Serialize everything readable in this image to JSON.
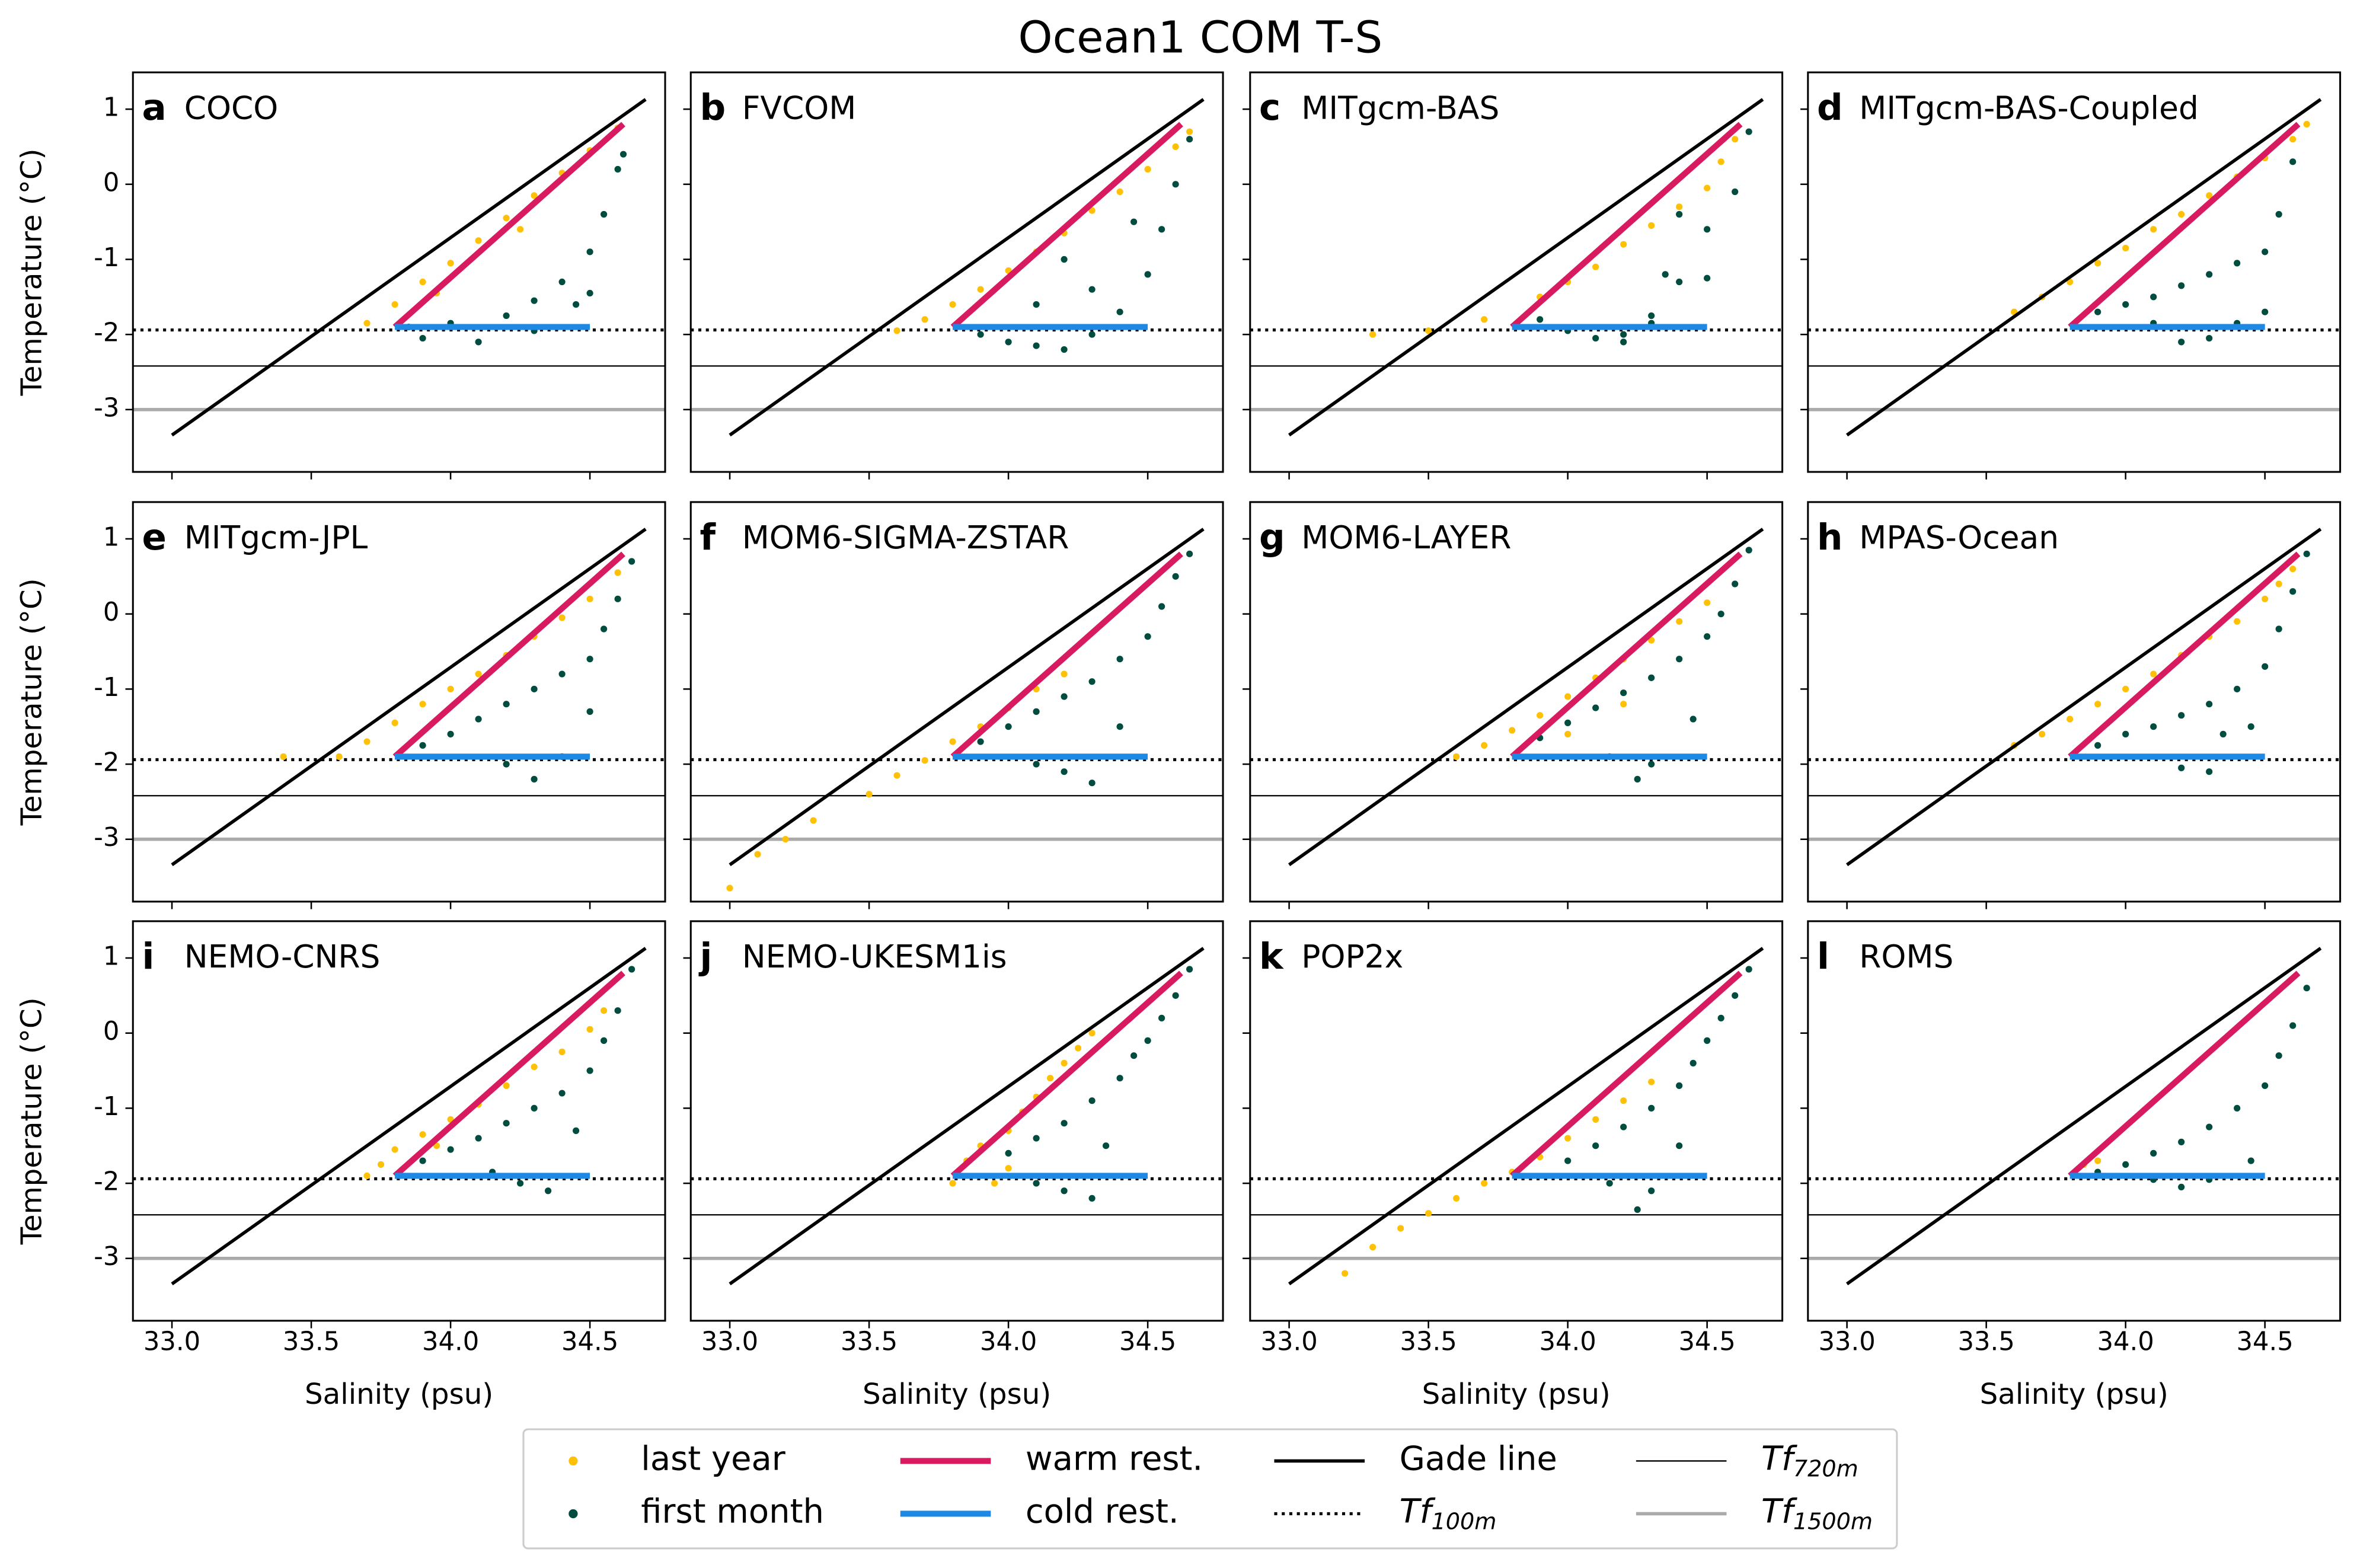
{
  "chart_data": {
    "type": "scatter",
    "title": "Ocean1 COM T-S",
    "x_label": "Salinity (psu)",
    "y_label": "Temperature (°C)",
    "xlim": [
      32.86,
      34.77
    ],
    "ylim": [
      -3.83,
      1.49
    ],
    "xticks": [
      {
        "value": 33,
        "label": "33.0"
      },
      {
        "value": 33.5,
        "label": "33.5"
      },
      {
        "value": 34,
        "label": "34.0"
      },
      {
        "value": 34.5,
        "label": "34.5"
      }
    ],
    "yticks": [
      1,
      0,
      -1,
      -2,
      -3
    ],
    "scatter_series": [
      {
        "name": "last year",
        "color": "#ffc107"
      },
      {
        "name": "first month",
        "color": "#004d40"
      }
    ],
    "lines": [
      {
        "name": "warm rest.",
        "color": "#d81b60",
        "style": "thick",
        "x": [
          33.8,
          34.62
        ],
        "y": [
          -1.9,
          0.8
        ]
      },
      {
        "name": "cold rest.",
        "color": "#1e88e5",
        "style": "thick",
        "x": [
          33.8,
          34.5
        ],
        "y": [
          -1.9,
          -1.9
        ]
      },
      {
        "name": "Gade line",
        "color": "#000000",
        "style": "medium",
        "x": [
          33.0,
          34.7
        ],
        "y": [
          -3.34,
          1.13
        ]
      }
    ],
    "hlines": [
      {
        "name": "Tf",
        "subscript": "100m",
        "value": -1.94,
        "style": "dotted",
        "color": "#000000"
      },
      {
        "name": "Tf",
        "subscript": "720m",
        "value": -2.42,
        "style": "thin",
        "color": "#000000"
      },
      {
        "name": "Tf",
        "subscript": "1500m",
        "value": -3.0,
        "style": "medium",
        "color": "#aaaaaa"
      }
    ],
    "panels": [
      {
        "label": "a",
        "title": "COCO",
        "series": [
          {
            "x": [
              33.7,
              33.8,
              33.9,
              34.0,
              34.1,
              34.2,
              34.3,
              34.4,
              34.5,
              34.6,
              33.95,
              34.25
            ],
            "y": [
              -1.85,
              -1.6,
              -1.3,
              -1.05,
              -0.75,
              -0.45,
              -0.15,
              0.15,
              0.45,
              0.75,
              -1.45,
              -0.6
            ]
          },
          {
            "x": [
              33.85,
              34.0,
              34.2,
              34.3,
              34.4,
              34.5,
              34.55,
              34.6,
              34.62,
              34.1,
              33.9,
              34.3,
              34.45,
              34.5
            ],
            "y": [
              -1.9,
              -1.85,
              -1.75,
              -1.55,
              -1.3,
              -0.9,
              -0.4,
              0.2,
              0.4,
              -2.1,
              -2.05,
              -1.95,
              -1.6,
              -1.45
            ]
          }
        ]
      },
      {
        "label": "b",
        "title": "FVCOM",
        "series": [
          {
            "x": [
              33.6,
              33.7,
              33.8,
              33.9,
              34.0,
              34.1,
              34.2,
              34.3,
              34.4,
              34.5,
              34.6,
              34.65
            ],
            "y": [
              -1.95,
              -1.8,
              -1.6,
              -1.4,
              -1.15,
              -0.9,
              -0.65,
              -0.35,
              -0.1,
              0.2,
              0.5,
              0.7
            ]
          },
          {
            "x": [
              33.9,
              34.0,
              34.1,
              34.2,
              34.3,
              34.4,
              34.5,
              34.55,
              34.6,
              34.65,
              34.3,
              34.45,
              34.2,
              34.1
            ],
            "y": [
              -2.0,
              -2.1,
              -2.15,
              -2.2,
              -2.0,
              -1.7,
              -1.2,
              -0.6,
              0.0,
              0.6,
              -1.4,
              -0.5,
              -1.0,
              -1.6
            ]
          }
        ]
      },
      {
        "label": "c",
        "title": "MITgcm-BAS",
        "series": [
          {
            "x": [
              33.3,
              33.5,
              33.7,
              33.9,
              34.0,
              34.1,
              34.2,
              34.3,
              34.4,
              34.5,
              34.55,
              34.6
            ],
            "y": [
              -2.0,
              -1.95,
              -1.8,
              -1.5,
              -1.3,
              -1.1,
              -0.8,
              -0.55,
              -0.3,
              -0.05,
              0.3,
              0.6
            ]
          },
          {
            "x": [
              33.9,
              34.0,
              34.1,
              34.2,
              34.3,
              34.4,
              34.5,
              34.4,
              34.35,
              34.5,
              34.6,
              34.65,
              34.3,
              34.2
            ],
            "y": [
              -1.8,
              -1.95,
              -2.05,
              -2.0,
              -1.75,
              -1.3,
              -1.25,
              -0.4,
              -1.2,
              -0.6,
              -0.1,
              0.7,
              -1.85,
              -2.1
            ]
          }
        ]
      },
      {
        "label": "d",
        "title": "MITgcm-BAS-Coupled",
        "series": [
          {
            "x": [
              33.6,
              33.7,
              33.8,
              33.9,
              34.0,
              34.1,
              34.2,
              34.3,
              34.4,
              34.5,
              34.6,
              34.65
            ],
            "y": [
              -1.7,
              -1.5,
              -1.3,
              -1.05,
              -0.85,
              -0.6,
              -0.4,
              -0.15,
              0.1,
              0.35,
              0.6,
              0.8
            ]
          },
          {
            "x": [
              33.9,
              34.0,
              34.1,
              34.2,
              34.3,
              34.4,
              34.5,
              34.55,
              34.6,
              34.5,
              34.4,
              34.3,
              34.2,
              34.1
            ],
            "y": [
              -1.7,
              -1.6,
              -1.5,
              -1.35,
              -1.2,
              -1.05,
              -0.9,
              -0.4,
              0.3,
              -1.7,
              -1.85,
              -2.05,
              -2.1,
              -1.85
            ]
          }
        ]
      },
      {
        "label": "e",
        "title": "MITgcm-JPL",
        "series": [
          {
            "x": [
              33.4,
              33.6,
              33.7,
              33.8,
              33.9,
              34.0,
              34.1,
              34.2,
              34.3,
              34.4,
              34.5,
              34.6
            ],
            "y": [
              -1.9,
              -1.9,
              -1.7,
              -1.45,
              -1.2,
              -1.0,
              -0.8,
              -0.55,
              -0.3,
              -0.05,
              0.2,
              0.55
            ]
          },
          {
            "x": [
              33.9,
              34.0,
              34.1,
              34.2,
              34.3,
              34.4,
              34.5,
              34.55,
              34.6,
              34.65,
              34.3,
              34.4,
              34.2,
              34.5
            ],
            "y": [
              -1.75,
              -1.6,
              -1.4,
              -1.2,
              -1.0,
              -0.8,
              -0.6,
              -0.2,
              0.2,
              0.7,
              -2.2,
              -1.9,
              -2.0,
              -1.3
            ]
          }
        ]
      },
      {
        "label": "f",
        "title": "MOM6-SIGMA-ZSTAR",
        "series": [
          {
            "x": [
              33.0,
              33.1,
              33.2,
              33.3,
              33.5,
              33.6,
              33.7,
              33.8,
              33.9,
              34.0,
              34.1,
              34.2
            ],
            "y": [
              -3.65,
              -3.2,
              -3.0,
              -2.75,
              -2.4,
              -2.15,
              -1.95,
              -1.7,
              -1.5,
              -1.25,
              -1.0,
              -0.8
            ]
          },
          {
            "x": [
              33.9,
              34.0,
              34.1,
              34.2,
              34.3,
              34.4,
              34.5,
              34.55,
              34.6,
              34.65,
              34.3,
              34.2,
              34.4,
              34.1
            ],
            "y": [
              -1.7,
              -1.5,
              -1.3,
              -1.1,
              -0.9,
              -0.6,
              -0.3,
              0.1,
              0.5,
              0.8,
              -2.25,
              -2.1,
              -1.5,
              -2.0
            ]
          }
        ]
      },
      {
        "label": "g",
        "title": "MOM6-LAYER",
        "series": [
          {
            "x": [
              33.6,
              33.7,
              33.8,
              33.9,
              34.0,
              34.1,
              34.2,
              34.3,
              34.4,
              34.5,
              34.0,
              34.2
            ],
            "y": [
              -1.9,
              -1.75,
              -1.55,
              -1.35,
              -1.1,
              -0.85,
              -0.6,
              -0.35,
              -0.1,
              0.15,
              -1.6,
              -1.2
            ]
          },
          {
            "x": [
              33.9,
              34.0,
              34.1,
              34.2,
              34.3,
              34.4,
              34.5,
              34.55,
              34.6,
              34.65,
              34.25,
              34.3,
              34.45,
              34.15
            ],
            "y": [
              -1.65,
              -1.45,
              -1.25,
              -1.05,
              -0.85,
              -0.6,
              -0.3,
              0.0,
              0.4,
              0.85,
              -2.2,
              -2.0,
              -1.4,
              -1.9
            ]
          }
        ]
      },
      {
        "label": "h",
        "title": "MPAS-Ocean",
        "series": [
          {
            "x": [
              33.6,
              33.7,
              33.8,
              33.9,
              34.0,
              34.1,
              34.2,
              34.3,
              34.4,
              34.5,
              34.55,
              34.6
            ],
            "y": [
              -1.75,
              -1.6,
              -1.4,
              -1.2,
              -1.0,
              -0.8,
              -0.55,
              -0.3,
              -0.1,
              0.2,
              0.4,
              0.6
            ]
          },
          {
            "x": [
              33.9,
              34.0,
              34.1,
              34.2,
              34.3,
              34.4,
              34.5,
              34.55,
              34.6,
              34.65,
              34.3,
              34.2,
              34.45,
              34.35
            ],
            "y": [
              -1.75,
              -1.6,
              -1.5,
              -1.35,
              -1.2,
              -1.0,
              -0.7,
              -0.2,
              0.3,
              0.8,
              -2.1,
              -2.05,
              -1.5,
              -1.6
            ]
          }
        ]
      },
      {
        "label": "i",
        "title": "NEMO-CNRS",
        "series": [
          {
            "x": [
              33.7,
              33.75,
              33.8,
              33.9,
              34.0,
              34.1,
              34.2,
              34.3,
              34.4,
              34.5,
              34.55,
              33.95
            ],
            "y": [
              -1.9,
              -1.75,
              -1.55,
              -1.35,
              -1.15,
              -0.95,
              -0.7,
              -0.45,
              -0.25,
              0.05,
              0.3,
              -1.5
            ]
          },
          {
            "x": [
              33.9,
              34.0,
              34.1,
              34.2,
              34.3,
              34.4,
              34.5,
              34.55,
              34.6,
              34.65,
              34.35,
              34.25,
              34.45,
              34.15
            ],
            "y": [
              -1.7,
              -1.55,
              -1.4,
              -1.2,
              -1.0,
              -0.8,
              -0.5,
              -0.1,
              0.3,
              0.85,
              -2.1,
              -2.0,
              -1.3,
              -1.85
            ]
          }
        ]
      },
      {
        "label": "j",
        "title": "NEMO-UKESM1is",
        "series": [
          {
            "x": [
              33.8,
              33.85,
              33.9,
              34.0,
              34.05,
              34.1,
              34.15,
              34.2,
              34.25,
              34.3,
              34.0,
              33.95
            ],
            "y": [
              -2.0,
              -1.7,
              -1.5,
              -1.3,
              -1.05,
              -0.85,
              -0.6,
              -0.4,
              -0.2,
              0.0,
              -1.8,
              -2.0
            ]
          },
          {
            "x": [
              34.0,
              34.1,
              34.2,
              34.3,
              34.4,
              34.45,
              34.5,
              34.55,
              34.6,
              34.65,
              34.3,
              34.2,
              34.35,
              34.1
            ],
            "y": [
              -1.6,
              -1.4,
              -1.2,
              -0.9,
              -0.6,
              -0.3,
              -0.1,
              0.2,
              0.5,
              0.85,
              -2.2,
              -2.1,
              -1.5,
              -2.0
            ]
          }
        ]
      },
      {
        "label": "k",
        "title": "POP2x",
        "series": [
          {
            "x": [
              33.3,
              33.4,
              33.5,
              33.6,
              33.7,
              33.8,
              33.9,
              34.0,
              34.1,
              34.2,
              34.3,
              33.2
            ],
            "y": [
              -2.85,
              -2.6,
              -2.4,
              -2.2,
              -2.0,
              -1.85,
              -1.65,
              -1.4,
              -1.15,
              -0.9,
              -0.65,
              -3.2
            ]
          },
          {
            "x": [
              34.0,
              34.1,
              34.2,
              34.3,
              34.4,
              34.45,
              34.5,
              34.55,
              34.6,
              34.65,
              34.25,
              34.3,
              34.15,
              34.4
            ],
            "y": [
              -1.7,
              -1.5,
              -1.25,
              -1.0,
              -0.7,
              -0.4,
              -0.1,
              0.2,
              0.5,
              0.85,
              -2.35,
              -2.1,
              -2.0,
              -1.5
            ]
          }
        ]
      },
      {
        "label": "l",
        "title": "ROMS",
        "series": [
          {
            "x": [
              33.85,
              33.9
            ],
            "y": [
              -1.75,
              -1.7
            ]
          },
          {
            "x": [
              33.9,
              34.0,
              34.1,
              34.2,
              34.3,
              34.4,
              34.5,
              34.55,
              34.6,
              34.65,
              34.3,
              34.2,
              34.45,
              34.1
            ],
            "y": [
              -1.85,
              -1.75,
              -1.6,
              -1.45,
              -1.25,
              -1.0,
              -0.7,
              -0.3,
              0.1,
              0.6,
              -1.95,
              -2.05,
              -1.7,
              -1.95
            ]
          }
        ]
      }
    ]
  }
}
